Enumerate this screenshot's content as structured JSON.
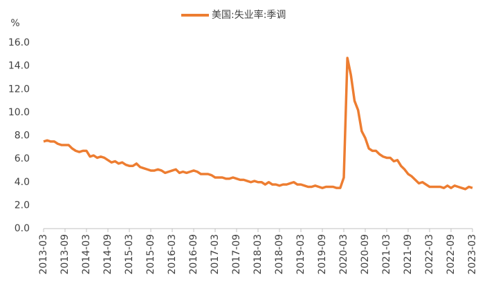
{
  "chart_data": {
    "type": "line",
    "y_label": "%",
    "categories": [
      "2013-03",
      null,
      null,
      null,
      null,
      null,
      "2013-09",
      null,
      null,
      null,
      null,
      null,
      "2014-03",
      null,
      null,
      null,
      null,
      null,
      "2014-09",
      null,
      null,
      null,
      null,
      null,
      "2015-03",
      null,
      null,
      null,
      null,
      null,
      "2015-09",
      null,
      null,
      null,
      null,
      null,
      "2016-03",
      null,
      null,
      null,
      null,
      null,
      "2016-09",
      null,
      null,
      null,
      null,
      null,
      "2017-03",
      null,
      null,
      null,
      null,
      null,
      "2017-09",
      null,
      null,
      null,
      null,
      null,
      "2018-03",
      null,
      null,
      null,
      null,
      null,
      "2018-09",
      null,
      null,
      null,
      null,
      null,
      "2019-03",
      null,
      null,
      null,
      null,
      null,
      "2019-09",
      null,
      null,
      null,
      null,
      null,
      "2020-03",
      null,
      null,
      null,
      null,
      null,
      "2020-09",
      null,
      null,
      null,
      null,
      null,
      "2021-03",
      null,
      null,
      null,
      null,
      null,
      "2021-09",
      null,
      null,
      null,
      null,
      null,
      "2022-03",
      null,
      null,
      null,
      null,
      null,
      "2022-09",
      null,
      null,
      null,
      null,
      null,
      "2023-03"
    ],
    "series": [
      {
        "name": "美国:失业率:季调",
        "color": "#ed7d31",
        "values": [
          7.5,
          7.6,
          7.5,
          7.5,
          7.3,
          7.2,
          7.2,
          7.2,
          6.9,
          6.7,
          6.6,
          6.7,
          6.7,
          6.2,
          6.3,
          6.1,
          6.2,
          6.1,
          5.9,
          5.7,
          5.8,
          5.6,
          5.7,
          5.5,
          5.4,
          5.4,
          5.6,
          5.3,
          5.2,
          5.1,
          5.0,
          5.0,
          5.1,
          5.0,
          4.8,
          4.9,
          5.0,
          5.1,
          4.8,
          4.9,
          4.8,
          4.9,
          5.0,
          4.9,
          4.7,
          4.7,
          4.7,
          4.6,
          4.4,
          4.4,
          4.4,
          4.3,
          4.3,
          4.4,
          4.3,
          4.2,
          4.2,
          4.1,
          4.0,
          4.1,
          4.0,
          4.0,
          3.8,
          4.0,
          3.8,
          3.8,
          3.7,
          3.8,
          3.8,
          3.9,
          4.0,
          3.8,
          3.8,
          3.7,
          3.6,
          3.6,
          3.7,
          3.6,
          3.5,
          3.6,
          3.6,
          3.6,
          3.5,
          3.5,
          4.4,
          14.7,
          13.2,
          11.0,
          10.2,
          8.4,
          7.8,
          6.9,
          6.7,
          6.7,
          6.4,
          6.2,
          6.1,
          6.1,
          5.8,
          5.9,
          5.4,
          5.1,
          4.7,
          4.5,
          4.2,
          3.9,
          4.0,
          3.8,
          3.6,
          3.6,
          3.6,
          3.6,
          3.5,
          3.7,
          3.5,
          3.7,
          3.6,
          3.5,
          3.4,
          3.6,
          3.5
        ]
      }
    ],
    "ylim": [
      0,
      16
    ],
    "yticks": [
      {
        "value": 0,
        "label": "0.0"
      },
      {
        "value": 2,
        "label": "2.0"
      },
      {
        "value": 4,
        "label": "4.0"
      },
      {
        "value": 6,
        "label": "6.0"
      },
      {
        "value": 8,
        "label": "8.0"
      },
      {
        "value": 10,
        "label": "10.0"
      },
      {
        "value": 12,
        "label": "12.0"
      },
      {
        "value": 14,
        "label": "14.0"
      },
      {
        "value": 16,
        "label": "16.0"
      }
    ],
    "grid": false,
    "legend": "top"
  }
}
